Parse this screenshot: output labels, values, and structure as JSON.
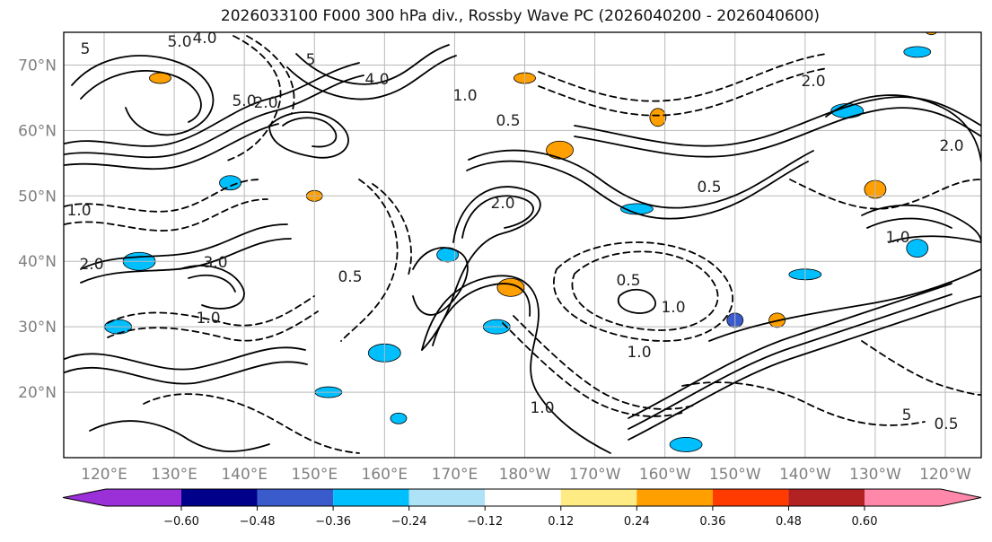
{
  "title": "2026033100 F000 300 hPa div., Rossby Wave PC (2026040200 - 2026040600)",
  "map": {
    "lat_labels": [
      "70°N",
      "60°N",
      "50°N",
      "40°N",
      "30°N",
      "20°N"
    ],
    "lat_values": [
      70,
      60,
      50,
      40,
      30,
      20
    ],
    "lat_range": [
      10,
      75
    ],
    "lon_labels": [
      "120°E",
      "130°E",
      "140°E",
      "150°E",
      "160°E",
      "170°E",
      "180°W",
      "170°W",
      "160°W",
      "150°W",
      "140°W",
      "130°W",
      "120°W"
    ],
    "lon_values_east": [
      120,
      130,
      140,
      150,
      160,
      170,
      180,
      190,
      200,
      210,
      220,
      230,
      240
    ],
    "lon_range_east": [
      120,
      240
    ]
  },
  "colorbar": {
    "colors": [
      "#9b30d9",
      "#00008b",
      "#3a5bcc",
      "#00bfff",
      "#aee2f7",
      "#ffffff",
      "#ffeb84",
      "#ff9f00",
      "#ff3b00",
      "#b22222",
      "#ff88aa"
    ],
    "tick_labels": [
      "−0.60",
      "−0.48",
      "−0.36",
      "−0.24",
      "−0.12",
      "0.12",
      "0.24",
      "0.36",
      "0.48",
      "0.60"
    ],
    "tick_values": [
      -0.6,
      -0.48,
      -0.36,
      -0.24,
      -0.12,
      0.12,
      0.24,
      0.36,
      0.48,
      0.6
    ],
    "extend": "both"
  },
  "contour_labels": [
    "5",
    "5.0",
    "4.0",
    "5.0",
    "2.0",
    "5",
    "4.0",
    "1.0",
    "0.5",
    "3.0",
    "1.0",
    "2.0",
    "1.0",
    "0.5",
    "2.0",
    "1.0",
    "0.5",
    "1.0",
    "1.0",
    "0.5",
    "2.0",
    "1.0",
    "2.0",
    "5",
    "0.5"
  ],
  "shaded_patches": [
    {
      "lon": 150,
      "lat": 50,
      "color": "#ff9f00"
    },
    {
      "lon": 169,
      "lat": 41,
      "color": "#00bfff"
    },
    {
      "lon": 185,
      "lat": 57,
      "color": "#ff9f00"
    },
    {
      "lon": 196,
      "lat": 48,
      "color": "#00bfff"
    },
    {
      "lon": 210,
      "lat": 31,
      "color": "#3a5bcc"
    },
    {
      "lon": 230,
      "lat": 51,
      "color": "#ff9f00"
    },
    {
      "lon": 236,
      "lat": 72,
      "color": "#00bfff"
    },
    {
      "lon": 226,
      "lat": 63,
      "color": "#00bfff"
    },
    {
      "lon": 199,
      "lat": 62,
      "color": "#ff9f00"
    },
    {
      "lon": 128,
      "lat": 68,
      "color": "#ff9f00"
    },
    {
      "lon": 176,
      "lat": 30,
      "color": "#00bfff"
    },
    {
      "lon": 160,
      "lat": 26,
      "color": "#00bfff"
    },
    {
      "lon": 162,
      "lat": 16,
      "color": "#00bfff"
    },
    {
      "lon": 138,
      "lat": 52,
      "color": "#00bfff"
    },
    {
      "lon": 178,
      "lat": 36,
      "color": "#ff9f00"
    },
    {
      "lon": 220,
      "lat": 38,
      "color": "#00bfff"
    },
    {
      "lon": 216,
      "lat": 31,
      "color": "#ff9f00"
    },
    {
      "lon": 236,
      "lat": 42,
      "color": "#00bfff"
    },
    {
      "lon": 152,
      "lat": 20,
      "color": "#00bfff"
    },
    {
      "lon": 203,
      "lat": 12,
      "color": "#00bfff"
    },
    {
      "lon": 238,
      "lat": 76,
      "color": "#ff9f00"
    },
    {
      "lon": 180,
      "lat": 68,
      "color": "#ff9f00"
    },
    {
      "lon": 122,
      "lat": 30,
      "color": "#00bfff"
    },
    {
      "lon": 125,
      "lat": 40,
      "color": "#00bfff"
    }
  ]
}
